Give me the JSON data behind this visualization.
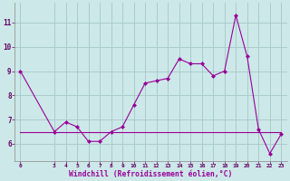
{
  "x": [
    0,
    3,
    4,
    5,
    6,
    7,
    8,
    9,
    10,
    11,
    12,
    13,
    14,
    15,
    16,
    17,
    18,
    19,
    20,
    21,
    22,
    23
  ],
  "y_main": [
    9.0,
    6.5,
    6.9,
    6.7,
    6.1,
    6.1,
    6.5,
    6.7,
    7.6,
    8.5,
    8.6,
    8.7,
    9.5,
    9.3,
    9.3,
    8.8,
    9.0,
    11.3,
    9.6,
    6.6,
    5.6,
    6.4
  ],
  "y_flat": [
    6.5,
    6.5,
    6.5,
    6.5,
    6.5,
    6.5,
    6.5,
    6.5,
    6.5,
    6.5,
    6.5,
    6.5,
    6.5,
    6.5,
    6.5,
    6.5,
    6.5,
    6.5,
    6.5,
    6.5,
    6.5,
    6.5
  ],
  "line_color": "#990099",
  "bg_color": "#cce8e8",
  "grid_color": "#aacccc",
  "xlabel": "Windchill (Refroidissement éolien,°C)",
  "xlabel_color": "#990099",
  "ylim": [
    5.3,
    11.8
  ],
  "xlim": [
    -0.5,
    23.5
  ],
  "yticks": [
    6,
    7,
    8,
    9,
    10,
    11
  ],
  "xticks": [
    0,
    3,
    4,
    5,
    6,
    7,
    8,
    9,
    10,
    11,
    12,
    13,
    14,
    15,
    16,
    17,
    18,
    19,
    20,
    21,
    22,
    23
  ]
}
